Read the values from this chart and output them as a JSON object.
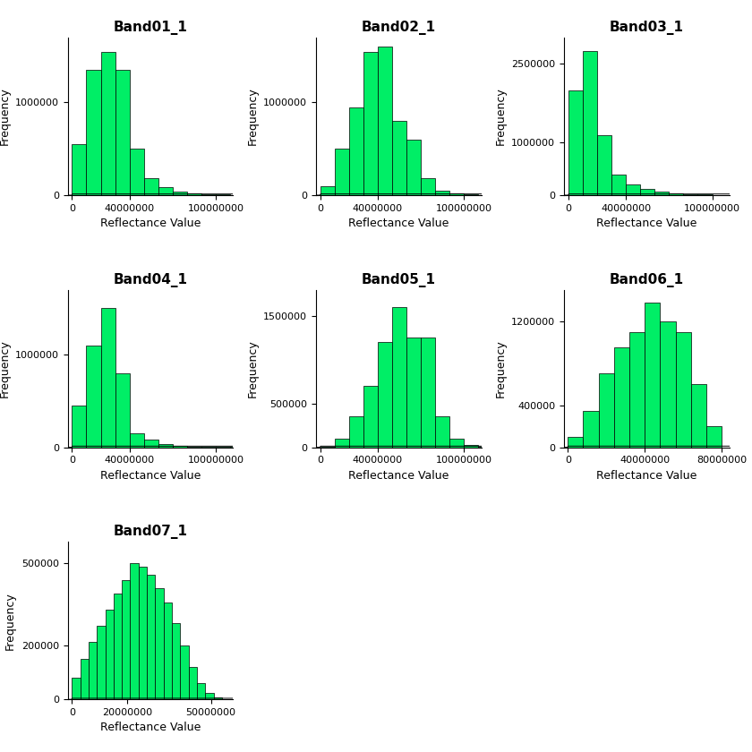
{
  "bands": [
    {
      "title": "Band01_1",
      "bin_edges": [
        0,
        10000000,
        20000000,
        30000000,
        40000000,
        50000000,
        60000000,
        70000000,
        80000000,
        90000000,
        100000000,
        110000000,
        120000000
      ],
      "frequencies": [
        550000,
        1350000,
        1550000,
        1350000,
        500000,
        180000,
        90000,
        40000,
        20000,
        10000,
        5000,
        2000
      ],
      "xlim": [
        -3000000,
        112000000
      ],
      "xticks": [
        0,
        40000000,
        100000000
      ],
      "ylim": [
        0,
        1700000
      ],
      "yticks": [
        0,
        1000000
      ],
      "xlabel": "Reflectance Value",
      "ylabel": "Frequency"
    },
    {
      "title": "Band02_1",
      "bin_edges": [
        0,
        10000000,
        20000000,
        30000000,
        40000000,
        50000000,
        60000000,
        70000000,
        80000000,
        90000000,
        100000000,
        110000000,
        120000000
      ],
      "frequencies": [
        100000,
        500000,
        950000,
        1550000,
        1600000,
        800000,
        600000,
        180000,
        50000,
        20000,
        8000,
        2000
      ],
      "xlim": [
        -3000000,
        112000000
      ],
      "xticks": [
        0,
        40000000,
        100000000
      ],
      "ylim": [
        0,
        1700000
      ],
      "yticks": [
        0,
        1000000
      ],
      "xlabel": "Reflectance Value",
      "ylabel": "Frequency"
    },
    {
      "title": "Band03_1",
      "bin_edges": [
        0,
        10000000,
        20000000,
        30000000,
        40000000,
        50000000,
        60000000,
        70000000,
        80000000,
        90000000,
        100000000,
        110000000,
        120000000
      ],
      "frequencies": [
        2000000,
        2750000,
        1150000,
        400000,
        200000,
        120000,
        70000,
        40000,
        20000,
        10000,
        5000,
        2000
      ],
      "xlim": [
        -3000000,
        112000000
      ],
      "xticks": [
        0,
        40000000,
        100000000
      ],
      "ylim": [
        0,
        3000000
      ],
      "yticks": [
        0,
        1000000,
        2500000
      ],
      "xlabel": "Reflectance Value",
      "ylabel": "Frequency"
    },
    {
      "title": "Band04_1",
      "bin_edges": [
        0,
        10000000,
        20000000,
        30000000,
        40000000,
        50000000,
        60000000,
        70000000,
        80000000,
        90000000,
        100000000,
        110000000,
        120000000
      ],
      "frequencies": [
        450000,
        1100000,
        1500000,
        800000,
        150000,
        80000,
        30000,
        15000,
        8000,
        4000,
        2000,
        1000
      ],
      "xlim": [
        -3000000,
        112000000
      ],
      "xticks": [
        0,
        40000000,
        100000000
      ],
      "ylim": [
        0,
        1700000
      ],
      "yticks": [
        0,
        1000000
      ],
      "xlabel": "Reflectance Value",
      "ylabel": "Frequency"
    },
    {
      "title": "Band05_1",
      "bin_edges": [
        0,
        10000000,
        20000000,
        30000000,
        40000000,
        50000000,
        60000000,
        70000000,
        80000000,
        90000000,
        100000000,
        110000000,
        120000000
      ],
      "frequencies": [
        10000,
        100000,
        350000,
        700000,
        1200000,
        1600000,
        1250000,
        1250000,
        350000,
        100000,
        30000,
        10000
      ],
      "xlim": [
        -3000000,
        112000000
      ],
      "xticks": [
        0,
        40000000,
        100000000
      ],
      "ylim": [
        0,
        1800000
      ],
      "yticks": [
        0,
        500000,
        1500000
      ],
      "xlabel": "Reflectance Value",
      "ylabel": "Frequency"
    },
    {
      "title": "Band06_1",
      "bin_edges": [
        0,
        8000000,
        16000000,
        24000000,
        32000000,
        40000000,
        48000000,
        56000000,
        64000000,
        72000000,
        80000000
      ],
      "frequencies": [
        100000,
        350000,
        700000,
        950000,
        1100000,
        1380000,
        1200000,
        1100000,
        600000,
        200000
      ],
      "xlim": [
        -2000000,
        84000000
      ],
      "xticks": [
        0,
        40000000,
        80000000
      ],
      "ylim": [
        0,
        1500000
      ],
      "yticks": [
        0,
        400000,
        1200000
      ],
      "xlabel": "Reflectance Value",
      "ylabel": "Frequency"
    },
    {
      "title": "Band07_1",
      "bin_edges": [
        0,
        3000000,
        6000000,
        9000000,
        12000000,
        15000000,
        18000000,
        21000000,
        24000000,
        27000000,
        30000000,
        33000000,
        36000000,
        39000000,
        42000000,
        45000000,
        48000000,
        51000000,
        54000000
      ],
      "frequencies": [
        80000,
        150000,
        210000,
        270000,
        330000,
        390000,
        440000,
        500000,
        490000,
        460000,
        410000,
        355000,
        280000,
        200000,
        120000,
        60000,
        25000,
        8000
      ],
      "xlim": [
        -1500000,
        58000000
      ],
      "xticks": [
        0,
        20000000,
        50000000
      ],
      "ylim": [
        0,
        580000
      ],
      "yticks": [
        0,
        200000,
        500000
      ],
      "xlabel": "Reflectance Value",
      "ylabel": "Frequency"
    }
  ],
  "bar_color": "#00EE66",
  "bar_edge_color": "black",
  "background_color": "white",
  "title_fontsize": 11,
  "label_fontsize": 9,
  "tick_fontsize": 8
}
